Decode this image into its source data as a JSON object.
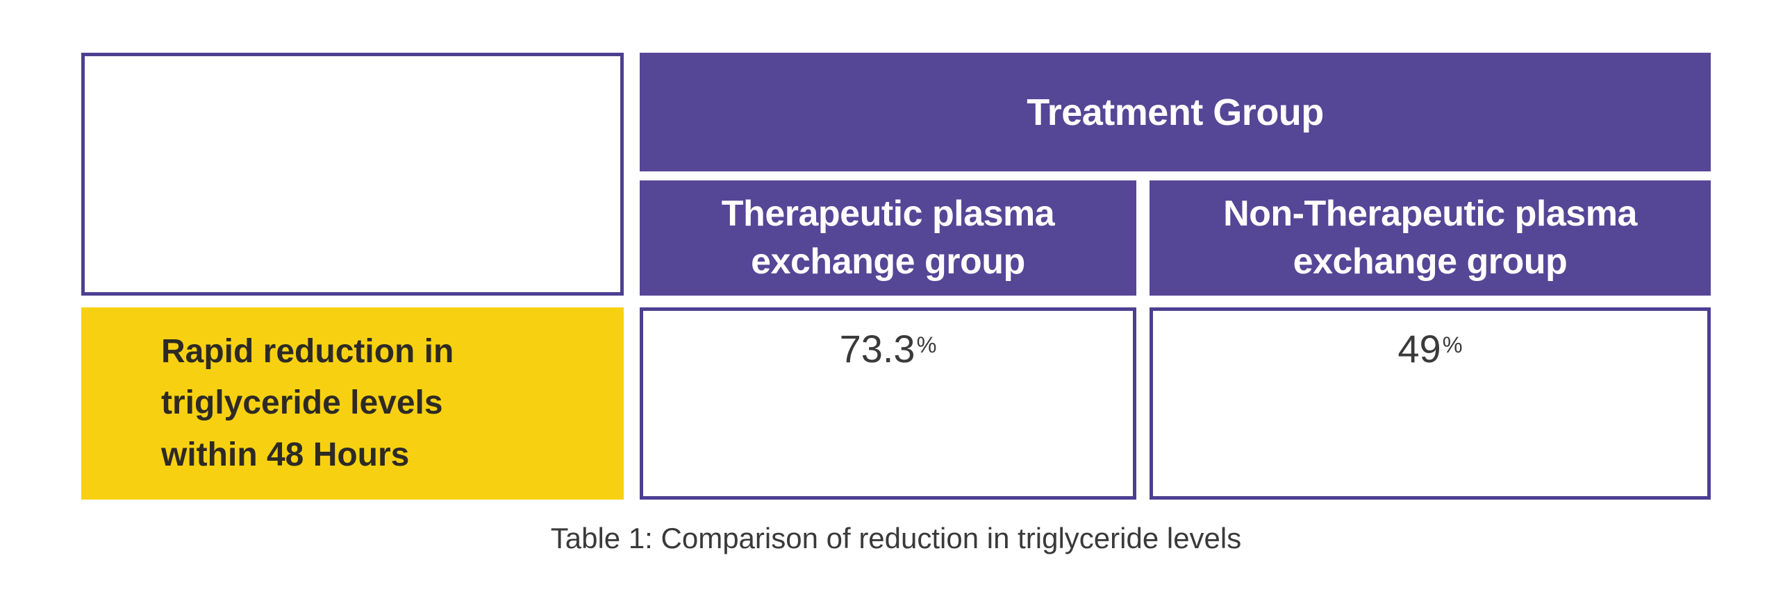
{
  "colors": {
    "header_fill": "#564696",
    "cell_border": "#4c3f92",
    "row_label_fill": "#f7d111",
    "header_text": "#ffffff",
    "row_label_text": "#2d2a25",
    "value_text": "#3a3a3a",
    "background": "#ffffff"
  },
  "table": {
    "header": {
      "label": "Treatment Group"
    },
    "columns": [
      {
        "label": "Therapeutic plasma exchange group"
      },
      {
        "label": "Non-Therapeutic plasma exchange group"
      }
    ],
    "rows": [
      {
        "label": "Rapid reduction in triglyceride levels within 48 Hours",
        "values": [
          {
            "number": "73.3",
            "unit": "%"
          },
          {
            "number": "49",
            "unit": "%"
          }
        ]
      }
    ],
    "caption": "Table 1: Comparison of reduction in triglyceride levels"
  },
  "chart_data": {
    "type": "table",
    "title": "Table 1: Comparison of reduction in triglyceride levels",
    "column_group_header": "Treatment Group",
    "columns": [
      "Therapeutic plasma exchange group",
      "Non-Therapeutic plasma exchange group"
    ],
    "rows": [
      {
        "label": "Rapid reduction in triglyceride levels within 48 Hours",
        "values": [
          "73.3%",
          "49%"
        ],
        "values_numeric": [
          73.3,
          49
        ]
      }
    ]
  }
}
